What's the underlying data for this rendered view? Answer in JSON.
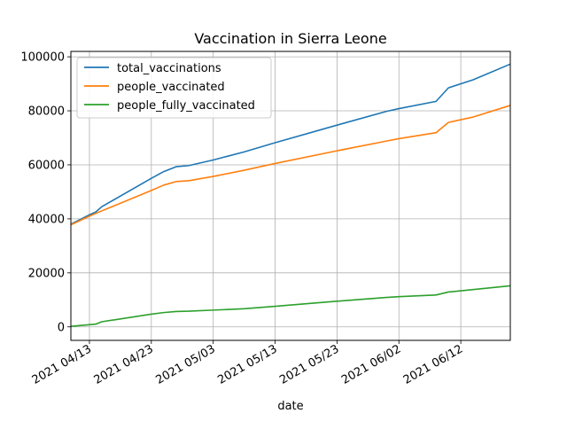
{
  "chart_data": {
    "type": "line",
    "title": "Vaccination in Sierra Leone",
    "xlabel": "date",
    "ylabel": "",
    "x_ticks": [
      "2021 04/13",
      "2021 04/23",
      "2021 05/03",
      "2021 05/13",
      "2021 05/23",
      "2021 06/02",
      "2021 06/12"
    ],
    "y_ticks": [
      "0",
      "20000",
      "40000",
      "60000",
      "80000",
      "100000"
    ],
    "xlim": [
      "2021-04-10",
      "2021-06-20"
    ],
    "ylim": [
      -5000,
      102000
    ],
    "grid": true,
    "legend_position": "upper-left",
    "series": [
      {
        "name": "total_vaccinations",
        "color": "#1f77b4",
        "points": [
          [
            "2021-04-10",
            38000
          ],
          [
            "2021-04-13",
            41500
          ],
          [
            "2021-04-14",
            42500
          ],
          [
            "2021-04-15",
            44500
          ],
          [
            "2021-04-23",
            55000
          ],
          [
            "2021-04-25",
            57500
          ],
          [
            "2021-04-27",
            59300
          ],
          [
            "2021-04-29",
            59700
          ],
          [
            "2021-05-03",
            61800
          ],
          [
            "2021-05-08",
            64800
          ],
          [
            "2021-05-13",
            68200
          ],
          [
            "2021-05-23",
            74700
          ],
          [
            "2021-05-31",
            79800
          ],
          [
            "2021-06-02",
            80800
          ],
          [
            "2021-06-08",
            83500
          ],
          [
            "2021-06-10",
            88500
          ],
          [
            "2021-06-14",
            91500
          ],
          [
            "2021-06-20",
            97300
          ]
        ]
      },
      {
        "name": "people_vaccinated",
        "color": "#ff7f0e",
        "points": [
          [
            "2021-04-10",
            37800
          ],
          [
            "2021-04-13",
            41000
          ],
          [
            "2021-04-14",
            42000
          ],
          [
            "2021-04-23",
            50500
          ],
          [
            "2021-04-25",
            52500
          ],
          [
            "2021-04-27",
            53800
          ],
          [
            "2021-04-29",
            54100
          ],
          [
            "2021-05-03",
            55700
          ],
          [
            "2021-05-08",
            58000
          ],
          [
            "2021-05-13",
            60500
          ],
          [
            "2021-05-23",
            65200
          ],
          [
            "2021-05-31",
            68800
          ],
          [
            "2021-06-02",
            69700
          ],
          [
            "2021-06-08",
            71900
          ],
          [
            "2021-06-10",
            75700
          ],
          [
            "2021-06-14",
            77700
          ],
          [
            "2021-06-20",
            82000
          ]
        ]
      },
      {
        "name": "people_fully_vaccinated",
        "color": "#2ca02c",
        "points": [
          [
            "2021-04-10",
            200
          ],
          [
            "2021-04-14",
            1000
          ],
          [
            "2021-04-15",
            1900
          ],
          [
            "2021-04-23",
            4700
          ],
          [
            "2021-04-25",
            5300
          ],
          [
            "2021-04-27",
            5700
          ],
          [
            "2021-04-29",
            5800
          ],
          [
            "2021-05-03",
            6200
          ],
          [
            "2021-05-08",
            6700
          ],
          [
            "2021-05-13",
            7600
          ],
          [
            "2021-05-23",
            9500
          ],
          [
            "2021-05-31",
            10900
          ],
          [
            "2021-06-02",
            11200
          ],
          [
            "2021-06-08",
            11800
          ],
          [
            "2021-06-10",
            12900
          ],
          [
            "2021-06-14",
            13800
          ],
          [
            "2021-06-20",
            15200
          ]
        ]
      }
    ]
  }
}
